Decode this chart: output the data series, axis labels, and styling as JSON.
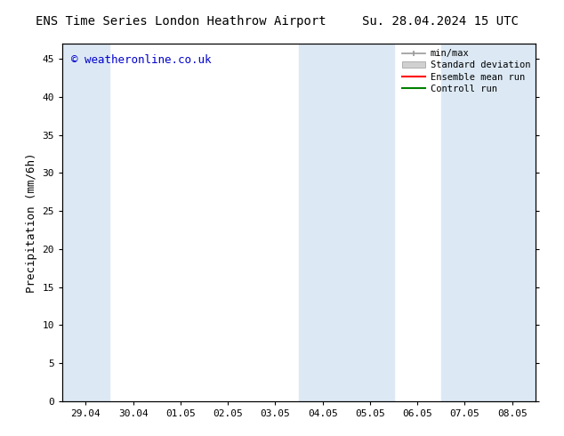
{
  "title_left": "ENS Time Series London Heathrow Airport",
  "title_right": "Su. 28.04.2024 15 UTC",
  "ylabel": "Precipitation (mm/6h)",
  "watermark": "© weatheronline.co.uk",
  "x_tick_labels": [
    "29.04",
    "30.04",
    "01.05",
    "02.05",
    "03.05",
    "04.05",
    "05.05",
    "06.05",
    "07.05",
    "08.05"
  ],
  "x_tick_positions": [
    0,
    1,
    2,
    3,
    4,
    5,
    6,
    7,
    8,
    9
  ],
  "ylim": [
    0,
    47
  ],
  "yticks": [
    0,
    5,
    10,
    15,
    20,
    25,
    30,
    35,
    40,
    45
  ],
  "xlim": [
    -0.5,
    9.5
  ],
  "shaded_bands": [
    {
      "x_start": -0.5,
      "x_end": 0.5,
      "color": "#dce9f5"
    },
    {
      "x_start": 4.5,
      "x_end": 6.5,
      "color": "#dce9f5"
    },
    {
      "x_start": 7.5,
      "x_end": 9.5,
      "color": "#dce9f5"
    }
  ],
  "background_color": "#ffffff",
  "plot_bg_color": "#ffffff",
  "legend_labels": [
    "min/max",
    "Standard deviation",
    "Ensemble mean run",
    "Controll run"
  ],
  "legend_colors": [
    "#aaaaaa",
    "#cccccc",
    "#ff0000",
    "#008000"
  ],
  "title_fontsize": 10,
  "tick_fontsize": 8,
  "ylabel_fontsize": 9,
  "watermark_color": "#0000cc",
  "watermark_fontsize": 9
}
